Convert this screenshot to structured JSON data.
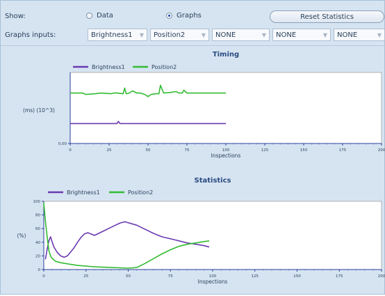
{
  "controls": {
    "show_label": "Show:",
    "radio_data": "Data",
    "radio_graphs": "Graphs",
    "reset_button": "Reset Statistics",
    "graphs_inputs_label": "Graphs inputs:",
    "combos": [
      "Brightness1",
      "Position2",
      "NONE",
      "NONE",
      "NONE"
    ]
  },
  "chart_data": [
    {
      "type": "line",
      "title": "Timing",
      "xlabel": "Inspections",
      "ylabel": "(ms) (10^3)",
      "xlim": [
        0,
        200
      ],
      "xticks": [
        "0",
        "25",
        "50",
        "75",
        "100",
        "125",
        "150",
        "175",
        "200"
      ],
      "yticks": [
        "0,00"
      ],
      "ylim": [
        0,
        1
      ],
      "legend": "top-left",
      "series": [
        {
          "name": "Brightness1",
          "color": "#6a3ab0",
          "x": [
            0,
            10,
            20,
            30,
            31,
            32,
            33,
            40,
            50,
            60,
            70,
            80,
            90,
            100
          ],
          "y": [
            0.28,
            0.28,
            0.28,
            0.28,
            0.31,
            0.28,
            0.28,
            0.28,
            0.28,
            0.28,
            0.28,
            0.28,
            0.28,
            0.28
          ]
        },
        {
          "name": "Position2",
          "color": "#33bb33",
          "x": [
            0,
            8,
            10,
            16,
            20,
            26,
            28,
            30,
            34,
            35,
            36,
            38,
            40,
            43,
            45,
            48,
            50,
            52,
            55,
            57,
            58,
            60,
            65,
            68,
            70,
            72,
            73,
            75,
            80,
            90,
            100
          ],
          "y": [
            0.71,
            0.71,
            0.69,
            0.7,
            0.71,
            0.7,
            0.71,
            0.71,
            0.7,
            0.78,
            0.7,
            0.71,
            0.74,
            0.71,
            0.71,
            0.69,
            0.66,
            0.69,
            0.7,
            0.7,
            0.82,
            0.71,
            0.72,
            0.73,
            0.71,
            0.71,
            0.75,
            0.71,
            0.71,
            0.71,
            0.71
          ]
        }
      ]
    },
    {
      "type": "line",
      "title": "Statistics",
      "xlabel": "Inspections",
      "ylabel": "(%)",
      "xlim": [
        0,
        200
      ],
      "ylim": [
        0,
        100
      ],
      "xticks": [
        "0",
        "25",
        "50",
        "75",
        "100",
        "125",
        "150",
        "175",
        "200"
      ],
      "yticks": [
        "0",
        "20",
        "40",
        "60",
        "80",
        "100"
      ],
      "legend": "top-left",
      "series": [
        {
          "name": "Brightness1",
          "color": "#6a3ab0",
          "x": [
            1,
            2,
            3,
            4,
            5,
            6,
            8,
            10,
            12,
            14,
            16,
            18,
            20,
            22,
            24,
            26,
            28,
            30,
            35,
            40,
            45,
            48,
            55,
            60,
            65,
            70,
            75,
            80,
            85,
            90,
            95,
            98
          ],
          "y": [
            15,
            30,
            42,
            48,
            40,
            33,
            25,
            20,
            18,
            20,
            26,
            32,
            40,
            47,
            52,
            54,
            52,
            50,
            56,
            62,
            68,
            70,
            65,
            59,
            53,
            48,
            45,
            42,
            39,
            37,
            35,
            33
          ]
        },
        {
          "name": "Position2",
          "color": "#33bb33",
          "x": [
            0,
            1,
            2,
            3,
            4,
            5,
            7,
            10,
            15,
            20,
            30,
            40,
            50,
            55,
            60,
            65,
            70,
            75,
            80,
            85,
            90,
            95,
            98
          ],
          "y": [
            98,
            70,
            48,
            28,
            20,
            16,
            12,
            10,
            8,
            6,
            4,
            3,
            2,
            3,
            9,
            16,
            23,
            29,
            34,
            37,
            39,
            41,
            42
          ]
        }
      ]
    }
  ]
}
